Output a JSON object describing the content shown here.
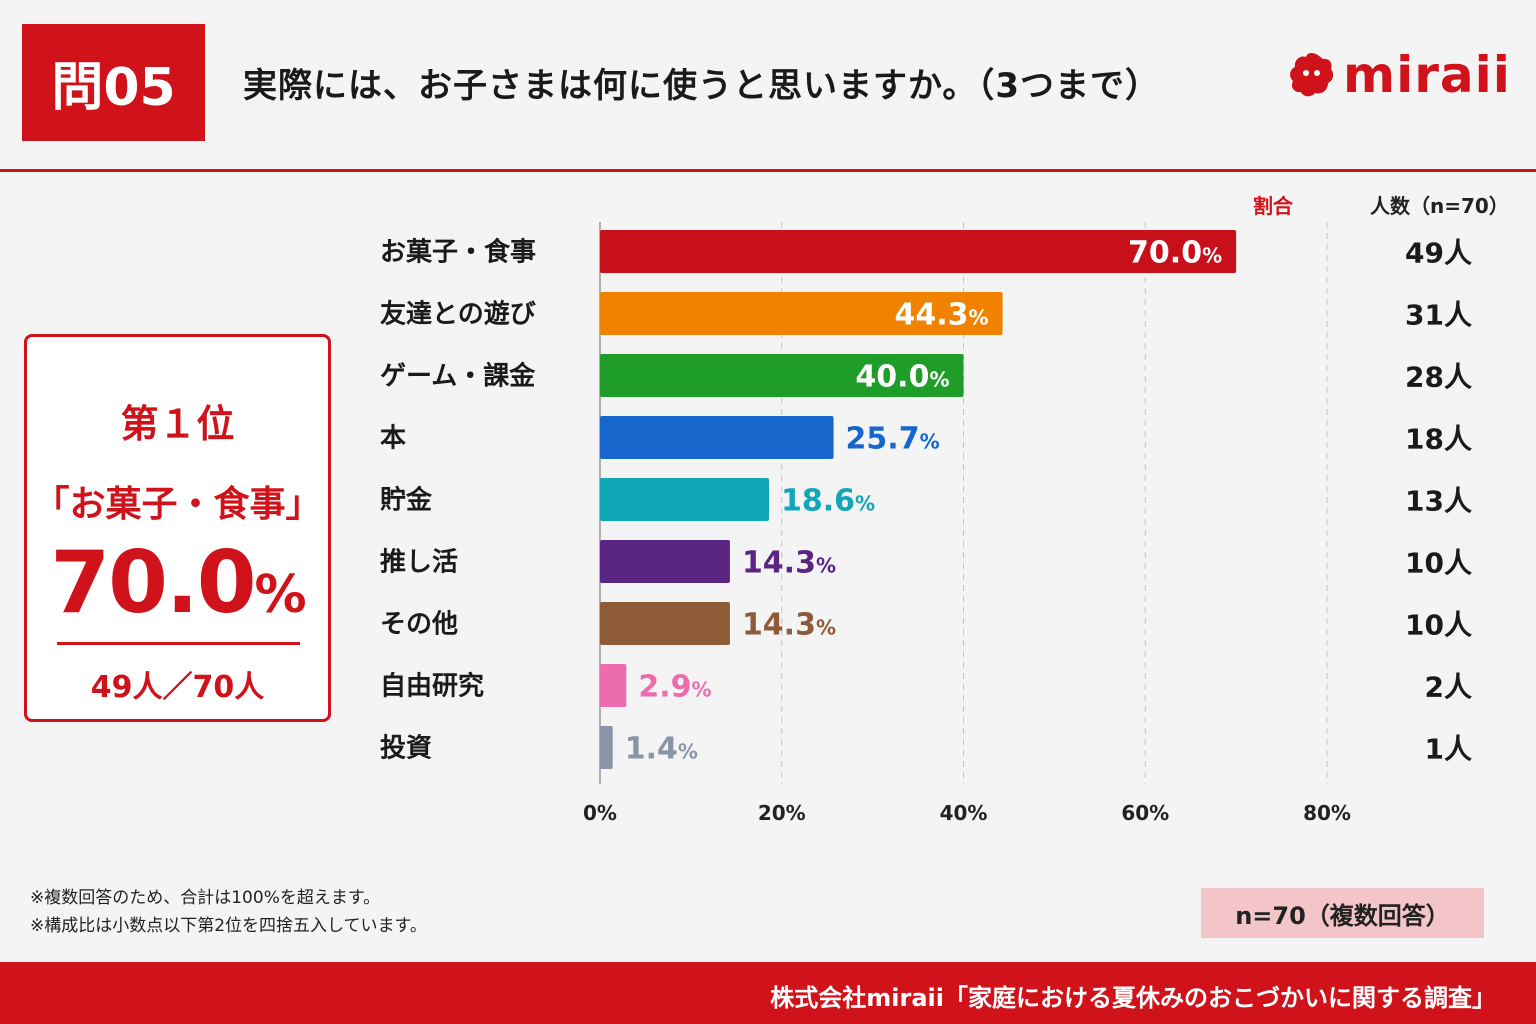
{
  "header": {
    "question_label": "問05",
    "title": "実際には、お子さまは何に使うと思いますか。（3つまで）",
    "logo_text": "miraii"
  },
  "columns": {
    "ratio_label": "割合",
    "count_label": "人数（n=70）"
  },
  "highlight": {
    "rank": "第１位",
    "item": "「お菓子・食事」",
    "value": "70.0",
    "value_unit": "%",
    "count": "49人／70人"
  },
  "notes": [
    "※複数回答のため、合計は100%を超えます。",
    "※構成比は小数点以下第2位を四捨五入しています。"
  ],
  "sample_note": "n=70（複数回答）",
  "footer": "株式会社miraii「家庭における夏休みのおこづかいに関する調査」",
  "colors": {
    "brand_red": "#d0121b",
    "bar_colors": [
      "#c8101a",
      "#f08200",
      "#1e9e28",
      "#1766cc",
      "#0fa7b9",
      "#5b2584",
      "#8f5a38",
      "#ec6cae",
      "#8a94a6"
    ]
  },
  "chart_data": {
    "type": "bar",
    "orientation": "horizontal",
    "categories": [
      "お菓子・食事",
      "友達との遊び",
      "ゲーム・課金",
      "本",
      "貯金",
      "推し活",
      "その他",
      "自由研究",
      "投資"
    ],
    "values": [
      70.0,
      44.3,
      40.0,
      25.7,
      18.6,
      14.3,
      14.3,
      2.9,
      1.4
    ],
    "value_labels": [
      "70.0",
      "44.3",
      "40.0",
      "25.7",
      "18.6",
      "14.3",
      "14.3",
      "2.9",
      "1.4"
    ],
    "value_unit": "%",
    "counts": [
      "49人",
      "31人",
      "28人",
      "18人",
      "13人",
      "10人",
      "10人",
      "2人",
      "1人"
    ],
    "x_ticks": [
      "0%",
      "20%",
      "40%",
      "60%",
      "80%"
    ],
    "xlim": [
      0,
      80
    ],
    "grid": true
  }
}
